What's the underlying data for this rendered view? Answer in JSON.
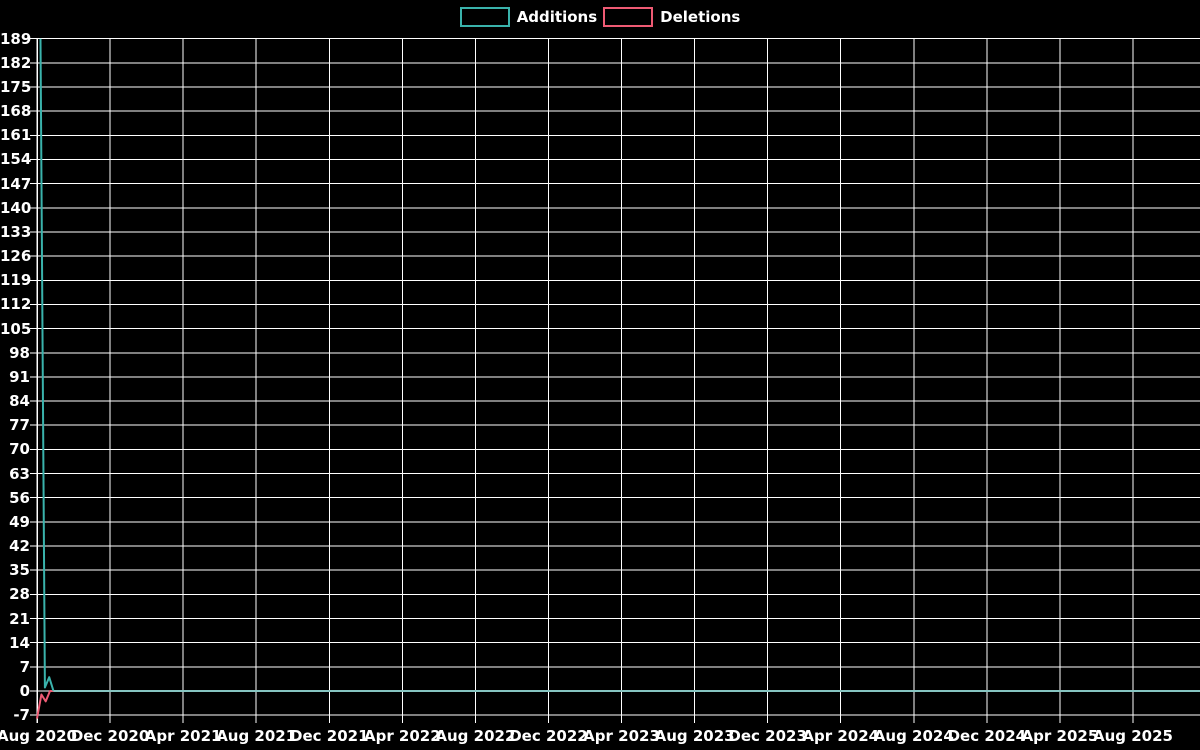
{
  "page": {
    "background_color": "#000000",
    "text_color": "#ffffff"
  },
  "legend": {
    "items": [
      {
        "label": "Additions",
        "color": "#3ab3ac"
      },
      {
        "label": "Deletions",
        "color": "#ef5b74"
      }
    ]
  },
  "chart_data": {
    "type": "line",
    "title": "",
    "legend_position": "top-center",
    "grid": true,
    "grid_color": "#ffffff",
    "background_color": "#000000",
    "axis_text_color": "#ffffff",
    "x_axis": {
      "tick_labels": [
        "Aug 2020",
        "Dec 2020",
        "Apr 2021",
        "Aug 2021",
        "Dec 2021",
        "Apr 2022",
        "Aug 2022",
        "Dec 2022",
        "Apr 2023",
        "Aug 2023",
        "Dec 2023",
        "Apr 2024",
        "Aug 2024",
        "Dec 2024",
        "Apr 2025",
        "Aug 2025"
      ],
      "note": "weekly time series from Aug 2020 to Aug 2025"
    },
    "y_axis": {
      "tick_labels": [
        189,
        182,
        175,
        168,
        161,
        154,
        147,
        140,
        133,
        126,
        119,
        112,
        105,
        98,
        91,
        84,
        77,
        70,
        63,
        56,
        49,
        42,
        35,
        28,
        21,
        14,
        7,
        0,
        -7
      ],
      "tick_step": 7,
      "min": -8,
      "max": 189
    },
    "series": [
      {
        "name": "Additions",
        "color": "#3ab3ac",
        "zero_line_color": "#86c5c1",
        "weekly_values_from_aug_2020": [
          189,
          1,
          4,
          0
        ],
        "remaining_weeks_value": 0
      },
      {
        "name": "Deletions",
        "color": "#ef5b74",
        "weekly_values_from_aug_2020": [
          -8,
          -1,
          -3,
          0,
          0
        ],
        "remaining_weeks_value": 0
      }
    ]
  }
}
